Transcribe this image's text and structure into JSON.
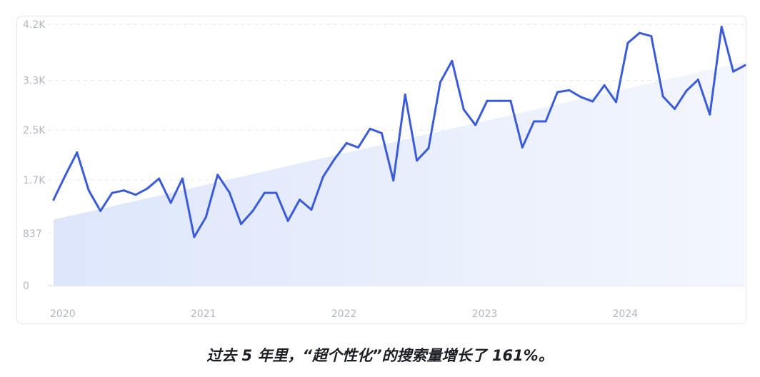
{
  "caption": "过去 5 年里，“超个性化”的搜索量增长了 161%。",
  "colors": {
    "line": "#3b5bdb",
    "trend_fill": "#dfe7fb",
    "grid": "#e3e6ea",
    "axis_text": "#b3b8bf",
    "baseline": "#c7d2f5"
  },
  "chart_data": {
    "type": "line",
    "title": "",
    "xlabel": "",
    "ylabel": "",
    "y_ticks": [
      "0",
      "837",
      "1.7K",
      "2.5K",
      "3.3K",
      "4.2K"
    ],
    "y_tick_values": [
      0,
      837,
      1700,
      2500,
      3300,
      4200
    ],
    "ylim": [
      0,
      4200
    ],
    "x_ticks": [
      "2020",
      "2021",
      "2022",
      "2023",
      "2024"
    ],
    "x_tick_positions": [
      0,
      12,
      24,
      36,
      48
    ],
    "grid": true,
    "series": [
      {
        "values": [
          1380,
          1770,
          2140,
          1530,
          1200,
          1490,
          1530,
          1460,
          1560,
          1720,
          1330,
          1720,
          780,
          1100,
          1780,
          1500,
          990,
          1200,
          1490,
          1490,
          1040,
          1380,
          1220,
          1750,
          2040,
          2290,
          2220,
          2520,
          2450,
          1690,
          3070,
          2010,
          2210,
          3270,
          3610,
          2830,
          2580,
          2970,
          2970,
          2970,
          2220,
          2640,
          2640,
          3110,
          3140,
          3030,
          2960,
          3220,
          2950,
          3900,
          4060,
          4010,
          3040,
          2840,
          3130,
          3310,
          2750,
          4160,
          3440,
          3540
        ]
      }
    ],
    "trend": {
      "start": 1060,
      "end": 3600
    }
  }
}
